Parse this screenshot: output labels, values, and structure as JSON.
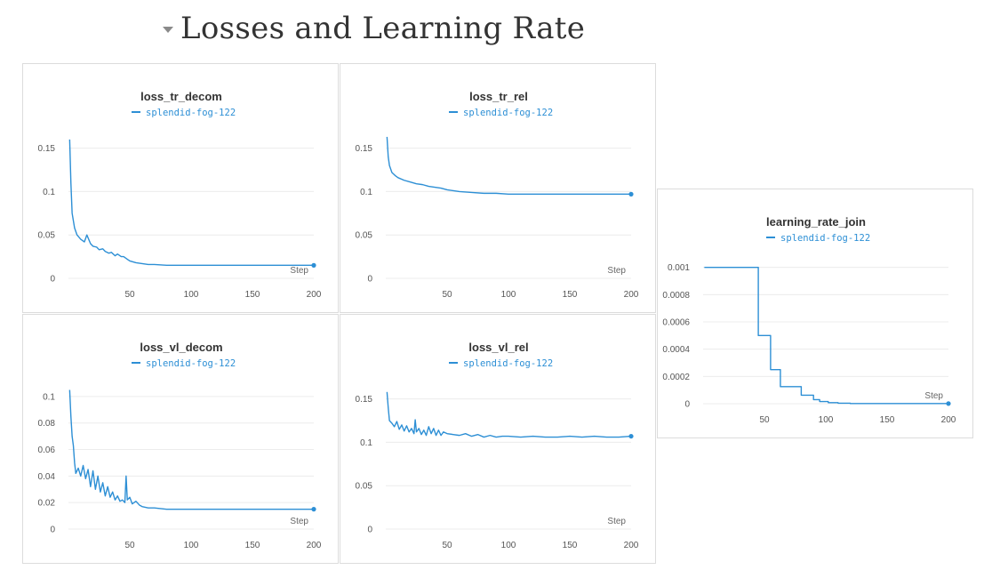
{
  "section": {
    "title": "Losses and Learning Rate"
  },
  "run_color": "#2d8fd5",
  "chart_data": [
    {
      "type": "line",
      "title": "loss_tr_decom",
      "xlabel": "Step",
      "legend": [
        "splendid-fog-122"
      ],
      "x_ticks": [
        "50",
        "100",
        "150",
        "200"
      ],
      "y_ticks": [
        "0",
        "0.05",
        "0.1",
        "0.15"
      ],
      "xlim": [
        0,
        200
      ],
      "ylim": [
        0,
        0.165
      ],
      "series": [
        {
          "name": "splendid-fog-122",
          "x": [
            1,
            2,
            3,
            5,
            7,
            10,
            13,
            15,
            18,
            20,
            23,
            25,
            28,
            30,
            33,
            35,
            38,
            40,
            43,
            45,
            48,
            50,
            55,
            60,
            65,
            70,
            80,
            90,
            100,
            120,
            150,
            180,
            200
          ],
          "y": [
            0.16,
            0.11,
            0.075,
            0.058,
            0.05,
            0.045,
            0.042,
            0.05,
            0.04,
            0.037,
            0.036,
            0.033,
            0.034,
            0.031,
            0.029,
            0.03,
            0.026,
            0.028,
            0.025,
            0.025,
            0.022,
            0.02,
            0.018,
            0.017,
            0.016,
            0.016,
            0.015,
            0.015,
            0.015,
            0.015,
            0.015,
            0.015,
            0.015
          ]
        }
      ]
    },
    {
      "type": "line",
      "title": "loss_tr_rel",
      "xlabel": "Step",
      "legend": [
        "splendid-fog-122"
      ],
      "x_ticks": [
        "50",
        "100",
        "150",
        "200"
      ],
      "y_ticks": [
        "0",
        "0.05",
        "0.1",
        "0.15"
      ],
      "xlim": [
        0,
        200
      ],
      "ylim": [
        0,
        0.165
      ],
      "series": [
        {
          "name": "splendid-fog-122",
          "x": [
            1,
            2,
            3,
            5,
            8,
            10,
            15,
            20,
            25,
            30,
            35,
            40,
            45,
            50,
            55,
            60,
            70,
            80,
            90,
            100,
            120,
            140,
            160,
            180,
            200
          ],
          "y": [
            0.163,
            0.14,
            0.13,
            0.122,
            0.118,
            0.116,
            0.113,
            0.111,
            0.109,
            0.108,
            0.106,
            0.105,
            0.104,
            0.102,
            0.101,
            0.1,
            0.099,
            0.098,
            0.098,
            0.097,
            0.097,
            0.097,
            0.097,
            0.097,
            0.097
          ]
        }
      ]
    },
    {
      "type": "line",
      "title": "learning_rate_join",
      "xlabel": "Step",
      "legend": [
        "splendid-fog-122"
      ],
      "x_ticks": [
        "50",
        "100",
        "150",
        "200"
      ],
      "y_ticks": [
        "0",
        "0.0002",
        "0.0004",
        "0.0006",
        "0.0008",
        "0.001"
      ],
      "xlim": [
        0,
        200
      ],
      "ylim": [
        0,
        0.00105
      ],
      "series": [
        {
          "name": "splendid-fog-122",
          "x": [
            1,
            45,
            45,
            55,
            55,
            63,
            63,
            80,
            80,
            90,
            90,
            95,
            95,
            102,
            102,
            110,
            110,
            120,
            120,
            200
          ],
          "y": [
            0.001,
            0.001,
            0.0005,
            0.0005,
            0.00025,
            0.00025,
            0.000125,
            0.000125,
            6.25e-05,
            6.25e-05,
            3e-05,
            3e-05,
            1.6e-05,
            1.6e-05,
            8e-06,
            8e-06,
            4e-06,
            4e-06,
            1e-06,
            1e-06
          ]
        }
      ]
    },
    {
      "type": "line",
      "title": "loss_vl_decom",
      "xlabel": "Step",
      "legend": [
        "splendid-fog-122"
      ],
      "x_ticks": [
        "50",
        "100",
        "150",
        "200"
      ],
      "y_ticks": [
        "0",
        "0.02",
        "0.04",
        "0.06",
        "0.08",
        "0.1"
      ],
      "xlim": [
        0,
        200
      ],
      "ylim": [
        0,
        0.108
      ],
      "series": [
        {
          "name": "splendid-fog-122",
          "x": [
            1,
            2,
            3,
            4,
            5,
            6,
            8,
            10,
            12,
            14,
            16,
            18,
            20,
            22,
            24,
            26,
            28,
            30,
            32,
            34,
            36,
            38,
            40,
            42,
            44,
            46,
            47,
            48,
            50,
            52,
            55,
            58,
            60,
            65,
            70,
            80,
            100,
            130,
            160,
            200
          ],
          "y": [
            0.105,
            0.085,
            0.07,
            0.063,
            0.05,
            0.042,
            0.046,
            0.04,
            0.048,
            0.038,
            0.045,
            0.032,
            0.044,
            0.03,
            0.04,
            0.028,
            0.035,
            0.025,
            0.032,
            0.024,
            0.028,
            0.022,
            0.025,
            0.021,
            0.022,
            0.02,
            0.04,
            0.022,
            0.024,
            0.019,
            0.021,
            0.018,
            0.017,
            0.016,
            0.016,
            0.015,
            0.015,
            0.015,
            0.015,
            0.015
          ]
        }
      ]
    },
    {
      "type": "line",
      "title": "loss_vl_rel",
      "xlabel": "Step",
      "legend": [
        "splendid-fog-122"
      ],
      "x_ticks": [
        "50",
        "100",
        "150",
        "200"
      ],
      "y_ticks": [
        "0",
        "0.05",
        "0.1",
        "0.15"
      ],
      "xlim": [
        0,
        200
      ],
      "ylim": [
        0,
        0.165
      ],
      "series": [
        {
          "name": "splendid-fog-122",
          "x": [
            1,
            2,
            3,
            5,
            7,
            9,
            11,
            13,
            15,
            17,
            19,
            21,
            23,
            24,
            25,
            27,
            29,
            31,
            33,
            35,
            37,
            39,
            41,
            43,
            45,
            47,
            50,
            55,
            60,
            65,
            70,
            75,
            80,
            85,
            90,
            95,
            100,
            110,
            120,
            130,
            140,
            150,
            160,
            170,
            180,
            190,
            200
          ],
          "y": [
            0.158,
            0.14,
            0.125,
            0.122,
            0.118,
            0.124,
            0.115,
            0.12,
            0.113,
            0.119,
            0.112,
            0.116,
            0.11,
            0.126,
            0.112,
            0.116,
            0.109,
            0.114,
            0.108,
            0.118,
            0.11,
            0.116,
            0.108,
            0.114,
            0.108,
            0.112,
            0.11,
            0.109,
            0.108,
            0.11,
            0.107,
            0.109,
            0.106,
            0.108,
            0.106,
            0.107,
            0.107,
            0.106,
            0.107,
            0.106,
            0.106,
            0.107,
            0.106,
            0.107,
            0.106,
            0.106,
            0.107
          ]
        }
      ]
    }
  ]
}
